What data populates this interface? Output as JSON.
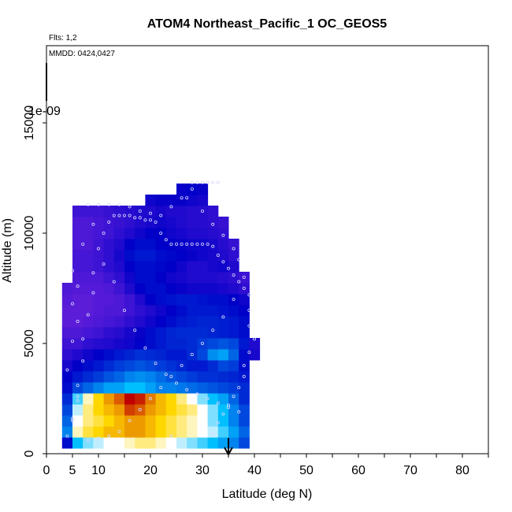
{
  "chart_data": {
    "type": "heatmap",
    "title": "ATOM4 Northeast_Pacific_1 OC_GEOS5",
    "flights_text": "Flts: 1,2",
    "mmdd_text": "MMDD: 0424,0427",
    "colorbar_scale_text": "1e-09",
    "xlabel": "Latitude (deg N)",
    "ylabel": "Altitude (m)",
    "xlim": [
      0,
      85
    ],
    "ylim": [
      0,
      18500
    ],
    "x_ticks": [
      0,
      5,
      10,
      15,
      20,
      25,
      30,
      35,
      40,
      45,
      50,
      55,
      60,
      65,
      70,
      75,
      80,
      85
    ],
    "x_tick_labels": [
      "0",
      "5",
      "10",
      "",
      "20",
      "",
      "30",
      "",
      "40",
      "",
      "50",
      "",
      "60",
      "",
      "70",
      "",
      "80",
      ""
    ],
    "y_ticks": [
      0,
      5000,
      10000,
      15000
    ],
    "y_tick_labels": [
      "0",
      "5000",
      "10000",
      "15000"
    ],
    "arrow_marker_lat": 35,
    "colors": {
      "low": "#8a2be2",
      "mid_low": "#0000c8",
      "mid": "#00bfff",
      "mid_high": "#ffffff",
      "high": "#ffd700",
      "max": "#c00000",
      "flight_points": "#d8d8ff"
    },
    "lat_bins": [
      4,
      6,
      8,
      10,
      12,
      14,
      16,
      18,
      20,
      22,
      24,
      26,
      28,
      30,
      32,
      34,
      36,
      38,
      40
    ],
    "alt_bins": [
      500,
      1000,
      1500,
      2000,
      2500,
      3000,
      3500,
      4000,
      4500,
      5000,
      5500,
      6000,
      6500,
      7000,
      7500,
      8000,
      8500,
      9000,
      9500,
      10000,
      10500,
      11000,
      11500,
      12000
    ],
    "values": [
      [
        0.2,
        0.5,
        0.6,
        0.65,
        0.7,
        0.7,
        0.75,
        0.8,
        0.8,
        0.75,
        0.7,
        0.65,
        0.6,
        0.55,
        0.5,
        0.45,
        0.4,
        0.3,
        null
      ],
      [
        0.4,
        0.75,
        0.85,
        0.9,
        0.95,
        0.95,
        1.0,
        1.0,
        0.95,
        0.9,
        0.85,
        0.8,
        0.75,
        0.7,
        0.65,
        0.55,
        0.45,
        0.35,
        null
      ],
      [
        0.35,
        0.7,
        0.8,
        0.85,
        0.9,
        0.95,
        1.0,
        1.0,
        0.95,
        0.9,
        0.85,
        0.8,
        0.75,
        0.7,
        0.6,
        0.5,
        0.4,
        0.3,
        null
      ],
      [
        0.3,
        0.65,
        0.8,
        0.9,
        0.95,
        1.0,
        1.15,
        1.1,
        1.0,
        0.95,
        0.9,
        0.85,
        0.8,
        0.7,
        0.6,
        0.5,
        0.4,
        0.3,
        null
      ],
      [
        0.25,
        0.55,
        0.75,
        0.9,
        1.0,
        1.1,
        1.25,
        1.2,
        1.05,
        0.95,
        0.9,
        0.8,
        0.7,
        0.6,
        0.5,
        0.45,
        0.35,
        0.25,
        null
      ],
      [
        0.2,
        0.3,
        0.35,
        0.4,
        0.45,
        0.45,
        0.5,
        0.5,
        0.45,
        0.4,
        0.4,
        0.38,
        0.36,
        0.34,
        0.32,
        0.3,
        0.28,
        0.25,
        null
      ],
      [
        0.18,
        0.22,
        0.25,
        0.28,
        0.32,
        0.35,
        0.4,
        0.42,
        0.4,
        0.36,
        0.32,
        0.3,
        0.28,
        0.26,
        0.26,
        0.25,
        0.24,
        0.22,
        null
      ],
      [
        0.15,
        0.18,
        0.2,
        0.22,
        0.25,
        0.28,
        0.3,
        0.32,
        0.3,
        0.28,
        0.26,
        0.24,
        0.22,
        0.22,
        0.25,
        0.3,
        0.28,
        0.2,
        null
      ],
      [
        0.12,
        0.14,
        0.16,
        0.18,
        0.2,
        0.22,
        0.24,
        0.26,
        0.25,
        0.24,
        0.22,
        0.22,
        0.25,
        0.3,
        0.42,
        0.45,
        0.35,
        0.2,
        0.15
      ],
      [
        0.1,
        0.1,
        0.12,
        0.13,
        0.14,
        0.15,
        0.16,
        0.18,
        0.2,
        0.22,
        0.24,
        0.24,
        0.25,
        0.28,
        0.3,
        0.32,
        0.3,
        0.22,
        0.14
      ],
      [
        0.08,
        0.08,
        0.09,
        0.1,
        0.12,
        0.13,
        0.15,
        0.17,
        0.2,
        0.22,
        0.24,
        0.25,
        0.25,
        0.25,
        0.24,
        0.23,
        0.22,
        0.2,
        null
      ],
      [
        0.06,
        0.06,
        0.07,
        0.08,
        0.09,
        0.1,
        0.12,
        0.14,
        0.16,
        0.18,
        0.2,
        0.22,
        0.23,
        0.24,
        0.24,
        0.23,
        0.22,
        0.2,
        null
      ],
      [
        0.06,
        0.06,
        0.06,
        0.07,
        0.08,
        0.08,
        0.1,
        0.12,
        0.14,
        0.16,
        0.18,
        0.2,
        0.22,
        0.22,
        0.22,
        0.21,
        0.2,
        0.18,
        null
      ],
      [
        0.07,
        0.06,
        0.06,
        0.07,
        0.07,
        0.08,
        0.1,
        0.14,
        0.18,
        0.2,
        0.21,
        0.22,
        0.22,
        0.21,
        0.2,
        0.2,
        0.18,
        0.16,
        null
      ],
      [
        0.08,
        0.07,
        0.07,
        0.07,
        0.08,
        0.1,
        0.14,
        0.18,
        0.2,
        0.2,
        0.18,
        0.17,
        0.16,
        0.16,
        0.16,
        0.15,
        0.14,
        0.12,
        null
      ],
      [
        null,
        0.08,
        0.08,
        0.08,
        0.1,
        0.12,
        0.16,
        0.2,
        0.2,
        0.18,
        0.16,
        0.15,
        0.14,
        0.14,
        0.14,
        0.13,
        0.12,
        0.1,
        null
      ],
      [
        null,
        0.09,
        0.09,
        0.1,
        0.12,
        0.14,
        0.18,
        0.2,
        0.2,
        0.19,
        0.18,
        0.16,
        0.14,
        0.14,
        0.15,
        0.16,
        0.14,
        null,
        null
      ],
      [
        null,
        0.09,
        0.09,
        0.1,
        0.12,
        0.15,
        0.2,
        0.22,
        0.22,
        0.2,
        0.19,
        0.18,
        0.17,
        0.16,
        0.15,
        0.14,
        0.12,
        null,
        null
      ],
      [
        null,
        0.08,
        0.08,
        0.1,
        0.12,
        0.14,
        0.18,
        0.2,
        0.2,
        0.18,
        0.18,
        0.17,
        0.16,
        0.16,
        0.15,
        0.13,
        0.11,
        null,
        null
      ],
      [
        null,
        0.08,
        0.08,
        0.09,
        0.1,
        0.12,
        0.14,
        0.16,
        0.18,
        0.18,
        0.16,
        0.15,
        0.14,
        0.14,
        0.13,
        0.12,
        null,
        null,
        null
      ],
      [
        null,
        0.08,
        0.08,
        0.09,
        0.1,
        0.11,
        0.12,
        0.14,
        0.15,
        0.16,
        0.15,
        0.14,
        0.13,
        0.13,
        0.12,
        0.11,
        null,
        null,
        null
      ],
      [
        null,
        0.1,
        0.1,
        0.1,
        0.11,
        0.12,
        0.13,
        0.14,
        0.14,
        0.15,
        0.14,
        0.14,
        0.13,
        0.13,
        0.12,
        null,
        null,
        null,
        null
      ],
      [
        null,
        null,
        null,
        null,
        null,
        null,
        null,
        null,
        0.16,
        0.17,
        0.17,
        0.17,
        0.16,
        0.15,
        null,
        null,
        null,
        null,
        null
      ],
      [
        null,
        null,
        null,
        null,
        null,
        null,
        null,
        null,
        null,
        null,
        null,
        0.17,
        0.18,
        0.17,
        null,
        null,
        null,
        null,
        null
      ]
    ],
    "flight_points": [
      [
        5,
        1600
      ],
      [
        6,
        2400
      ],
      [
        6,
        3100
      ],
      [
        7,
        4200
      ],
      [
        7,
        5200
      ],
      [
        8,
        6300
      ],
      [
        9,
        7300
      ],
      [
        9,
        8200
      ],
      [
        10,
        9300
      ],
      [
        11,
        10000
      ],
      [
        12,
        10500
      ],
      [
        13,
        10800
      ],
      [
        14,
        10800
      ],
      [
        15,
        10800
      ],
      [
        16,
        10800
      ],
      [
        17,
        10700
      ],
      [
        18,
        10700
      ],
      [
        19,
        10600
      ],
      [
        20,
        10600
      ],
      [
        21,
        10500
      ],
      [
        22,
        10000
      ],
      [
        23,
        9700
      ],
      [
        24,
        9500
      ],
      [
        25,
        9500
      ],
      [
        26,
        9500
      ],
      [
        27,
        9500
      ],
      [
        28,
        9500
      ],
      [
        29,
        9500
      ],
      [
        30,
        9500
      ],
      [
        31,
        9500
      ],
      [
        32,
        9400
      ],
      [
        33,
        9000
      ],
      [
        34,
        8700
      ],
      [
        35,
        8400
      ],
      [
        36,
        8100
      ],
      [
        37,
        7800
      ],
      [
        38,
        7500
      ],
      [
        39,
        7200
      ],
      [
        39,
        6500
      ],
      [
        39,
        5800
      ],
      [
        40,
        5200
      ],
      [
        39,
        4600
      ],
      [
        38,
        4000
      ],
      [
        38,
        3500
      ],
      [
        37,
        3000
      ],
      [
        36,
        2600
      ],
      [
        35,
        2200
      ],
      [
        34,
        1800
      ],
      [
        33,
        1400
      ],
      [
        32,
        900
      ],
      [
        8,
        11300
      ],
      [
        10,
        11300
      ],
      [
        12,
        11300
      ],
      [
        14,
        11300
      ],
      [
        16,
        11200
      ],
      [
        18,
        11000
      ],
      [
        20,
        10900
      ],
      [
        22,
        10800
      ],
      [
        24,
        11200
      ],
      [
        26,
        11600
      ],
      [
        28,
        12300
      ],
      [
        29,
        12300
      ],
      [
        30,
        12300
      ],
      [
        31,
        12300
      ],
      [
        32,
        12300
      ],
      [
        33,
        12300
      ],
      [
        4,
        800
      ],
      [
        5,
        1500
      ],
      [
        6,
        2600
      ],
      [
        4,
        3800
      ],
      [
        5,
        5100
      ],
      [
        6,
        6000
      ],
      [
        5,
        6800
      ],
      [
        6,
        7600
      ],
      [
        5,
        8300
      ],
      [
        7,
        9500
      ],
      [
        9,
        10400
      ],
      [
        11,
        8600
      ],
      [
        13,
        7800
      ],
      [
        15,
        6500
      ],
      [
        17,
        5600
      ],
      [
        19,
        4800
      ],
      [
        21,
        4100
      ],
      [
        23,
        3600
      ],
      [
        25,
        3200
      ],
      [
        27,
        2900
      ],
      [
        29,
        2700
      ],
      [
        31,
        2500
      ],
      [
        33,
        2300
      ],
      [
        35,
        2100
      ],
      [
        37,
        1900
      ],
      [
        28,
        12000
      ],
      [
        27,
        11600
      ],
      [
        30,
        11000
      ],
      [
        32,
        10400
      ],
      [
        34,
        9900
      ],
      [
        36,
        9300
      ],
      [
        37,
        8800
      ],
      [
        38,
        8000
      ],
      [
        36,
        7000
      ],
      [
        34,
        6200
      ],
      [
        32,
        5600
      ],
      [
        30,
        5000
      ],
      [
        28,
        4500
      ],
      [
        26,
        4000
      ],
      [
        24,
        3500
      ],
      [
        22,
        3000
      ],
      [
        20,
        2500
      ],
      [
        18,
        2000
      ],
      [
        16,
        1500
      ],
      [
        14,
        1000
      ],
      [
        12,
        800
      ],
      [
        10,
        700
      ],
      [
        8,
        600
      ],
      [
        24,
        800
      ]
    ]
  }
}
